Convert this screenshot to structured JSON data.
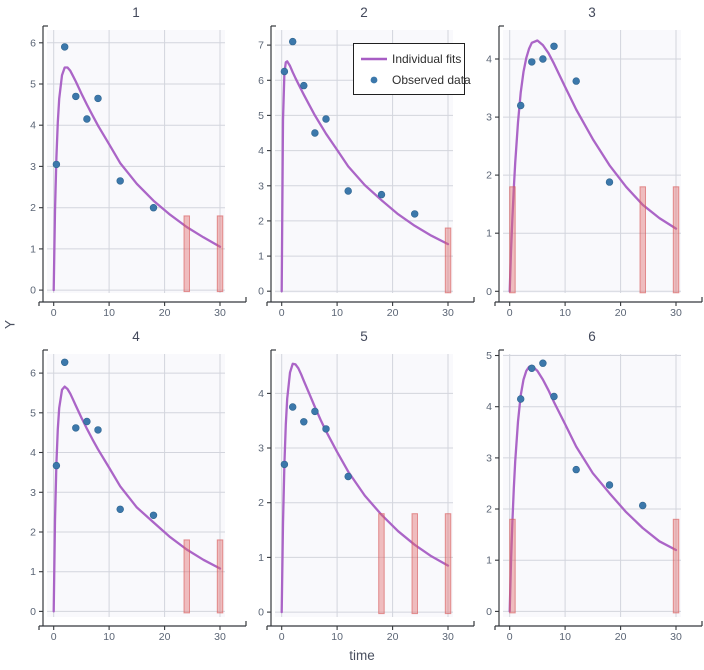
{
  "figure": {
    "y_axis_label": "Y",
    "x_axis_label": "time",
    "legend": {
      "items": [
        {
          "label": "Individual fits",
          "swatch": "line-swatch"
        },
        {
          "label": "Observed data",
          "swatch": "dot-swatch"
        }
      ]
    },
    "colors": {
      "plot_bg": "#f9f9fc",
      "grid": "#d3d5dd",
      "axis": "#35383d",
      "tick_label": "#5b6575",
      "title": "#42485a",
      "fit": "#a75dc4",
      "observed": "#3c78ab",
      "observed_edge": "#2e648f",
      "censored_fill": "rgba(226,106,106,0.42)",
      "censored_edge": "rgba(213,85,85,0.6)"
    }
  },
  "chart_data": {
    "type": "line",
    "description": "Grid of 6 individual-fit subplots: purple fitted concentration curves, blue observed data points, salmon vertical bars marking censored observations (height 1.8).",
    "xlabel": "time",
    "ylabel": "Y",
    "xlim": [
      -1.2,
      30.9
    ],
    "xticks": [
      0,
      10,
      20,
      30
    ],
    "fit_t": [
      0,
      0.25,
      0.5,
      0.75,
      1,
      1.5,
      2,
      2.5,
      3,
      3.5,
      4,
      5,
      6,
      7,
      8,
      10,
      12,
      15,
      18,
      21,
      24,
      27,
      30
    ],
    "panels": [
      {
        "title": "1",
        "ylim": [
          -0.07,
          6.31
        ],
        "yticks": [
          0,
          1,
          2,
          3,
          4,
          5,
          6
        ],
        "fit_y": [
          0,
          1.92,
          3.21,
          4.07,
          4.64,
          5.21,
          5.4,
          5.4,
          5.32,
          5.19,
          5.06,
          4.77,
          4.5,
          4.24,
          3.99,
          3.54,
          3.08,
          2.58,
          2.17,
          1.83,
          1.53,
          1.28,
          1.05
        ],
        "observed_t": [
          0.5,
          2,
          4,
          6,
          8,
          12,
          18
        ],
        "observed_y": [
          3.05,
          5.9,
          4.7,
          4.15,
          4.65,
          2.65,
          2.0
        ],
        "censored_t": [
          24,
          30
        ],
        "censored_top": 1.8
      },
      {
        "title": "2",
        "ylim": [
          -0.05,
          7.43
        ],
        "yticks": [
          0,
          1,
          2,
          3,
          4,
          5,
          6,
          7
        ],
        "fit_y": [
          0,
          4.87,
          6.2,
          6.51,
          6.54,
          6.41,
          6.23,
          6.06,
          5.9,
          5.74,
          5.59,
          5.29,
          5.0,
          4.74,
          4.48,
          4.02,
          3.55,
          3.02,
          2.59,
          2.19,
          1.86,
          1.58,
          1.34
        ],
        "observed_t": [
          0.5,
          2,
          4,
          6,
          8,
          12,
          18,
          24
        ],
        "observed_y": [
          6.25,
          7.1,
          5.85,
          4.5,
          4.9,
          2.85,
          2.75,
          2.2
        ],
        "censored_t": [
          30
        ],
        "censored_top": 1.8
      },
      {
        "title": "3",
        "ylim": [
          -0.03,
          4.5
        ],
        "yticks": [
          0,
          1,
          2,
          3,
          4
        ],
        "fit_y": [
          0,
          0.68,
          1.26,
          1.77,
          2.21,
          2.91,
          3.42,
          3.78,
          4.02,
          4.18,
          4.28,
          4.32,
          4.24,
          4.1,
          3.92,
          3.52,
          3.13,
          2.62,
          2.17,
          1.8,
          1.49,
          1.26,
          1.08
        ],
        "observed_t": [
          2,
          4,
          6,
          8,
          12,
          18
        ],
        "observed_y": [
          3.2,
          3.95,
          4.0,
          4.22,
          3.62,
          1.88
        ],
        "censored_t": [
          0.5,
          24,
          30
        ],
        "censored_top": 1.8
      },
      {
        "title": "4",
        "ylim": [
          -0.14,
          6.48
        ],
        "yticks": [
          0,
          1,
          2,
          3,
          4,
          5,
          6
        ],
        "fit_y": [
          0,
          2.29,
          3.72,
          4.59,
          5.12,
          5.58,
          5.66,
          5.6,
          5.48,
          5.33,
          5.18,
          4.88,
          4.6,
          4.33,
          4.08,
          3.62,
          3.15,
          2.62,
          2.24,
          1.87,
          1.56,
          1.3,
          1.08
        ],
        "observed_t": [
          0.5,
          2,
          4,
          6,
          8,
          12,
          18
        ],
        "observed_y": [
          3.67,
          6.27,
          4.62,
          4.78,
          4.57,
          2.57,
          2.42
        ],
        "censored_t": [
          24,
          30
        ],
        "censored_top": 1.8
      },
      {
        "title": "5",
        "ylim": [
          -0.09,
          4.72
        ],
        "yticks": [
          0,
          1,
          2,
          3,
          4
        ],
        "fit_y": [
          0,
          1.62,
          2.7,
          3.43,
          3.9,
          4.38,
          4.54,
          4.53,
          4.46,
          4.35,
          4.23,
          3.99,
          3.75,
          3.52,
          3.31,
          2.93,
          2.57,
          2.13,
          1.78,
          1.48,
          1.23,
          1.02,
          0.85
        ],
        "observed_t": [
          0.5,
          2,
          4,
          6,
          8,
          12
        ],
        "observed_y": [
          2.7,
          3.75,
          3.48,
          3.67,
          3.35,
          2.48
        ],
        "censored_t": [
          18,
          24,
          30
        ],
        "censored_top": 1.8
      },
      {
        "title": "6",
        "ylim": [
          -0.11,
          5.03
        ],
        "yticks": [
          0,
          1,
          2,
          3,
          4,
          5
        ],
        "fit_y": [
          0,
          0.96,
          1.75,
          2.4,
          2.93,
          3.71,
          4.22,
          4.53,
          4.7,
          4.78,
          4.8,
          4.7,
          4.53,
          4.32,
          4.09,
          3.66,
          3.22,
          2.7,
          2.31,
          1.94,
          1.63,
          1.37,
          1.2
        ],
        "observed_t": [
          2,
          4,
          6,
          8,
          12,
          18,
          24
        ],
        "observed_y": [
          4.15,
          4.75,
          4.85,
          4.2,
          2.77,
          2.47,
          2.07
        ],
        "censored_t": [
          0.5,
          30
        ],
        "censored_top": 1.8
      }
    ]
  }
}
